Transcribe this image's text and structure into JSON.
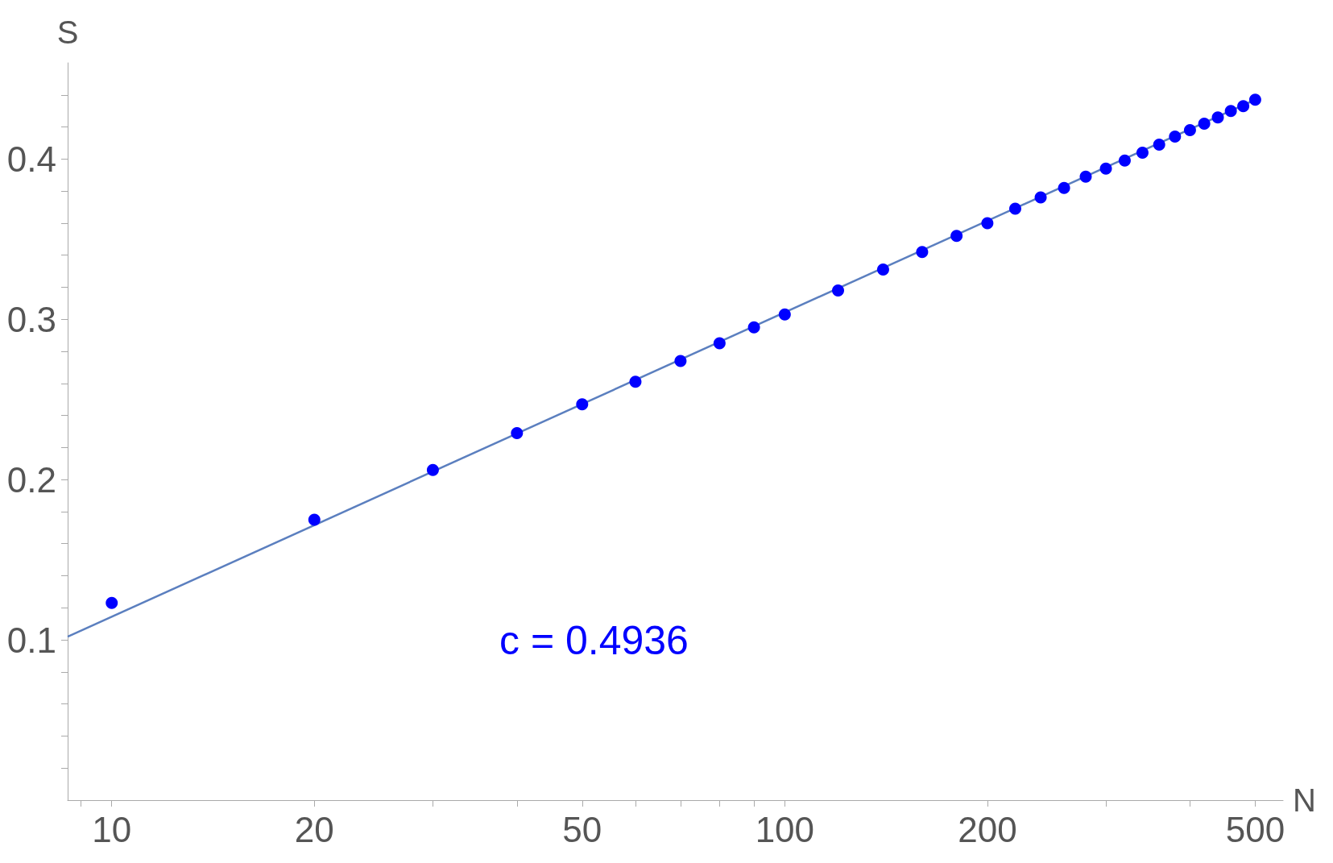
{
  "chart_data": {
    "type": "scatter",
    "xlabel": "N",
    "ylabel": "S",
    "log": "x",
    "grid": false,
    "marker": "circle",
    "x": [
      10,
      20,
      30,
      40,
      50,
      60,
      70,
      80,
      90,
      100,
      120,
      140,
      160,
      180,
      200,
      220,
      240,
      260,
      280,
      300,
      320,
      340,
      360,
      380,
      400,
      420,
      440,
      460,
      480,
      500
    ],
    "series": [
      {
        "color": "#0000ff",
        "values": [
          0.123,
          0.175,
          0.206,
          0.229,
          0.247,
          0.261,
          0.274,
          0.285,
          0.295,
          0.303,
          0.318,
          0.331,
          0.342,
          0.352,
          0.36,
          0.369,
          0.376,
          0.382,
          0.389,
          0.394,
          0.399,
          0.404,
          0.409,
          0.414,
          0.418,
          0.422,
          0.426,
          0.43,
          0.433,
          0.437
        ]
      },
      {
        "type": "line",
        "color": "#5b7fbf",
        "marker": "none",
        "line_style": "solid",
        "x": [
          8.6,
          500
        ],
        "values": [
          0.102,
          0.437
        ]
      }
    ],
    "xlim": [
      8.6,
      550
    ],
    "ylim": [
      0,
      0.46
    ],
    "xticks": [
      {
        "value": 9,
        "label": null
      },
      10,
      20,
      {
        "value": 30,
        "label": null
      },
      {
        "value": 40,
        "label": null
      },
      50,
      {
        "value": 60,
        "label": null
      },
      {
        "value": 70,
        "label": null
      },
      {
        "value": 80,
        "label": null
      },
      {
        "value": 90,
        "label": null
      },
      100,
      200,
      {
        "value": 300,
        "label": null
      },
      {
        "value": 400,
        "label": null
      },
      500
    ],
    "yticks": [
      {
        "value": 0.02,
        "label": null
      },
      {
        "value": 0.04,
        "label": null
      },
      {
        "value": 0.06,
        "label": null
      },
      {
        "value": 0.08,
        "label": null
      },
      0.1,
      {
        "value": 0.12,
        "label": null
      },
      {
        "value": 0.14,
        "label": null
      },
      {
        "value": 0.16,
        "label": null
      },
      {
        "value": 0.18,
        "label": null
      },
      0.2,
      {
        "value": 0.22,
        "label": null
      },
      {
        "value": 0.24,
        "label": null
      },
      {
        "value": 0.26,
        "label": null
      },
      {
        "value": 0.28,
        "label": null
      },
      0.3,
      {
        "value": 0.32,
        "label": null
      },
      {
        "value": 0.34,
        "label": null
      },
      {
        "value": 0.36,
        "label": null
      },
      {
        "value": 0.38,
        "label": null
      },
      0.4,
      {
        "value": 0.42,
        "label": null
      },
      {
        "value": 0.44,
        "label": null
      }
    ],
    "annotations": [
      "c = 0.4936"
    ]
  }
}
